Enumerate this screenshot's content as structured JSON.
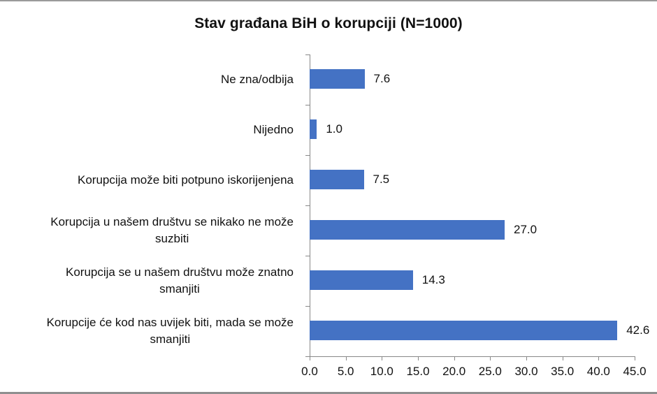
{
  "chart_data": {
    "type": "bar",
    "orientation": "horizontal",
    "title": "Stav građana BiH o korupciji (N=1000)",
    "xlabel": "",
    "ylabel": "",
    "categories": [
      "Ne zna/odbija",
      "Nijedno",
      "Korupcija može biti potpuno iskorijenjena",
      "Korupcija u našem društvu se nikako ne može suzbiti",
      "Korupcija se u našem društvu može znatno smanjiti",
      "Korupcije će kod nas uvijek biti, mada se može smanjiti"
    ],
    "values": [
      7.6,
      1.0,
      7.5,
      27.0,
      14.3,
      42.6
    ],
    "value_labels": [
      "7.6",
      "1.0",
      "7.5",
      "27.0",
      "14.3",
      "42.6"
    ],
    "xlim": [
      0,
      45
    ],
    "xticks": [
      "0.0",
      "5.0",
      "10.0",
      "15.0",
      "20.0",
      "25.0",
      "30.0",
      "35.0",
      "40.0",
      "45.0"
    ],
    "grid": false,
    "legend": null,
    "bar_color": "#4472C4"
  },
  "labels": {
    "cat0": "Ne zna/odbija",
    "cat1": "Nijedno",
    "cat2": "Korupcija može biti potpuno iskorijenjena",
    "cat3a": "Korupcija u našem društvu se nikako ne može",
    "cat3b": "suzbiti",
    "cat4a": "Korupcija se u našem društvu može znatno",
    "cat4b": "smanjiti",
    "cat5a": "Korupcije će kod nas uvijek biti, mada se može",
    "cat5b": "smanjiti"
  }
}
